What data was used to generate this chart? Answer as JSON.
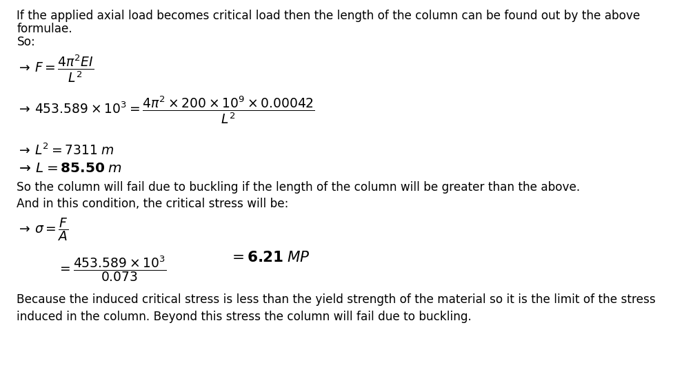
{
  "bg_color": "#ffffff",
  "text_color": "#000000",
  "figsize": [
    9.76,
    5.43
  ],
  "dpi": 100,
  "fs": 12.2,
  "fs_math": 13.5,
  "fs_bold": 14.5,
  "line1": "If the applied axial load becomes critical load then the length of the column can be found out by the above",
  "line2": "formulae.",
  "line3": "So:",
  "line8": "So the column will fail due to buckling if the length of the column will be greater than the above.",
  "line9": "And in this condition, the critical stress will be:",
  "line12": "Because the induced critical stress is less than the yield strength of the material so it is the limit of the stress",
  "line13": "induced in the column. Beyond this stress the column will fail due to buckling."
}
